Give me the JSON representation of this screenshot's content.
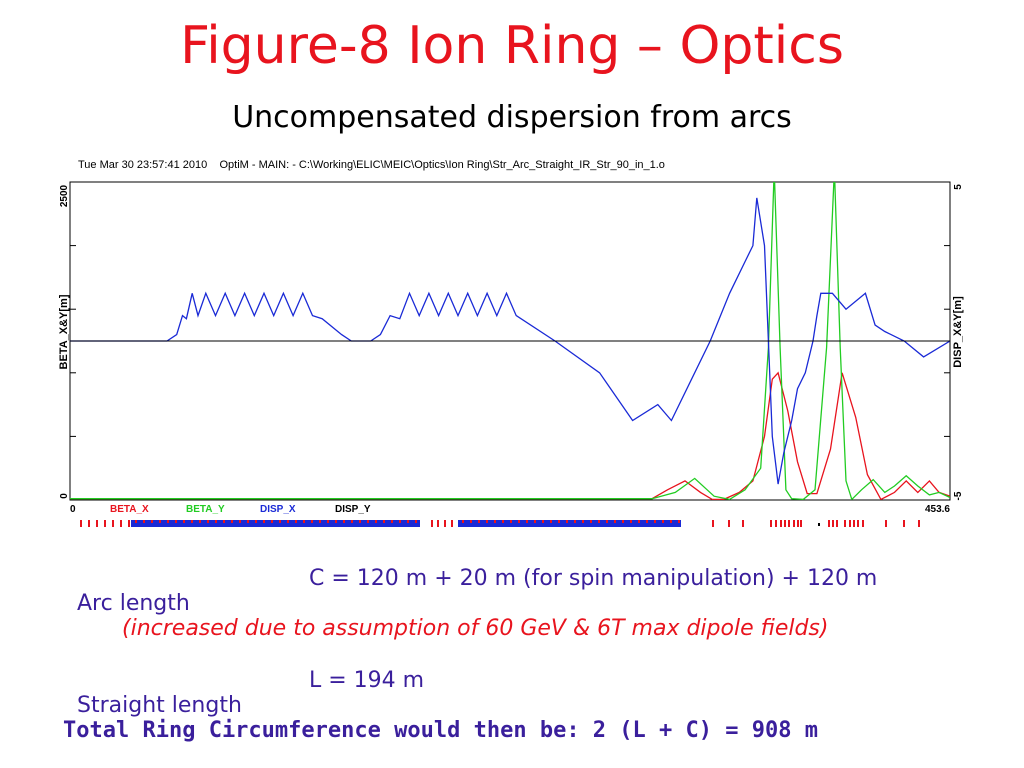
{
  "slide": {
    "title": "Figure-8 Ion Ring – Optics",
    "subtitle": "Uncompensated dispersion from arcs"
  },
  "plot_header": "Tue Mar 30 23:57:41 2010    OptiM - MAIN: - C:\\Working\\ELIC\\MEIC\\Optics\\Ion Ring\\Str_Arc_Straight_IR_Str_90_in_1.o",
  "colors": {
    "title": "#e8141e",
    "body_text": "#3a1f9c",
    "beta_x": "#e8141e",
    "beta_y": "#22cc22",
    "disp_x": "#1a2ad6",
    "disp_y": "#000000"
  },
  "chart_data": {
    "type": "line",
    "xlim": [
      0,
      453.6
    ],
    "x_tick_labels": [
      "0",
      "453.6"
    ],
    "y_left": {
      "label": "BETA_X&Y[m]",
      "range": [
        0,
        2500
      ],
      "tick_labels": [
        "0",
        "2500"
      ]
    },
    "y_right": {
      "label": "DISP_X&Y[m]",
      "range": [
        -5,
        5
      ],
      "tick_labels": [
        "-5",
        "5"
      ]
    },
    "grid": false,
    "legend": [
      "BETA_X",
      "BETA_Y",
      "DISP_X",
      "DISP_Y"
    ],
    "series": [
      {
        "name": "BETA_X",
        "axis": "left",
        "x": [
          0,
          150,
          300,
          308,
          317,
          325,
          331,
          337,
          345,
          352,
          358,
          362,
          365,
          370,
          375,
          380,
          385,
          392,
          398,
          405,
          411,
          418,
          425,
          431,
          437,
          443,
          448,
          453.6
        ],
        "y": [
          10,
          10,
          10,
          80,
          150,
          60,
          5,
          5,
          60,
          150,
          500,
          950,
          1000,
          700,
          300,
          50,
          50,
          400,
          1000,
          650,
          200,
          5,
          60,
          150,
          60,
          150,
          60,
          30
        ]
      },
      {
        "name": "BETA_Y",
        "axis": "left",
        "x": [
          0,
          150,
          300,
          312,
          322,
          332,
          340,
          348,
          356,
          360,
          363,
          366,
          369,
          372,
          378,
          384,
          390,
          394,
          397,
          400,
          403,
          408,
          414,
          420,
          425,
          431,
          437,
          443,
          448,
          453.6
        ],
        "y": [
          10,
          10,
          10,
          60,
          170,
          30,
          5,
          80,
          250,
          1200,
          2600,
          1200,
          80,
          10,
          5,
          80,
          1200,
          2600,
          1200,
          150,
          5,
          80,
          160,
          60,
          110,
          190,
          110,
          40,
          60,
          20
        ]
      },
      {
        "name": "DISP_X",
        "axis": "right",
        "x": [
          0,
          50,
          55,
          58,
          60,
          63,
          66,
          70,
          75,
          80,
          85,
          90,
          95,
          100,
          105,
          110,
          115,
          120,
          125,
          130,
          140,
          145,
          149,
          152,
          155,
          160,
          165,
          170,
          175,
          180,
          185,
          190,
          195,
          200,
          205,
          210,
          215,
          220,
          225,
          230,
          250,
          273,
          290,
          303,
          310,
          330,
          340,
          348,
          352,
          354,
          358,
          360,
          362,
          364,
          365,
          368,
          372,
          375,
          379,
          383,
          385,
          387,
          393,
          400,
          410,
          415,
          420,
          430,
          440,
          453.6
        ],
        "y": [
          0,
          0,
          0.2,
          0.8,
          0.7,
          1.5,
          0.8,
          1.5,
          0.8,
          1.5,
          0.8,
          1.5,
          0.8,
          1.5,
          0.8,
          1.5,
          0.8,
          1.5,
          0.8,
          0.7,
          0.2,
          0,
          0,
          0,
          0,
          0.2,
          0.8,
          0.7,
          1.5,
          0.8,
          1.5,
          0.8,
          1.5,
          0.8,
          1.5,
          0.8,
          1.5,
          0.8,
          1.5,
          0.8,
          0,
          -1,
          -2.5,
          -2,
          -2.5,
          0,
          1.5,
          2.5,
          3,
          4.5,
          3,
          0,
          -3,
          -4,
          -4.5,
          -3.5,
          -2.5,
          -1.5,
          -1,
          0,
          0.8,
          1.5,
          1.5,
          1,
          1.5,
          0.5,
          0.3,
          0,
          -0.5,
          0
        ]
      },
      {
        "name": "DISP_Y",
        "axis": "right",
        "x": [
          0,
          453.6
        ],
        "y": [
          0,
          0
        ]
      }
    ]
  },
  "lattice": {
    "red_marks_left": [
      10,
      18,
      26,
      34,
      42,
      50,
      58,
      66,
      74,
      82,
      90,
      98
    ],
    "blue_band_1": [
      131,
      420
    ],
    "red_marks_mid": [
      431,
      437,
      444,
      451
    ],
    "blue_band_2": [
      458,
      681
    ],
    "red_marks_right": [
      712,
      728,
      742,
      770,
      775,
      780,
      784,
      788,
      793,
      797,
      800,
      828,
      832,
      836,
      844,
      849,
      853,
      857,
      862,
      885,
      903,
      918
    ],
    "black_mark": [
      818
    ]
  },
  "text_rows": [
    {
      "label": "Arc length",
      "value": "C = 120 m + 20 m (for spin manipulation) + 120 m"
    },
    {
      "label": "Straight length",
      "value": "L = 194 m"
    }
  ],
  "note": "(increased due to assumption of 60 GeV & 6T max dipole fields)",
  "total": "Total Ring Circumference would then be: 2 (L + C) = 908 m"
}
